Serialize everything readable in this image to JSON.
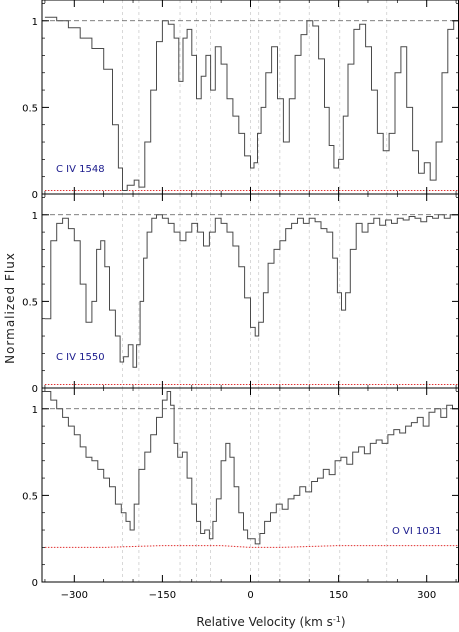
{
  "figure": {
    "ylabel": "Normalized Flux",
    "xlabel": "Relative Velocity (km s",
    "xlabel_sup": "-1",
    "xlabel_close": ")"
  },
  "colors": {
    "spectrum": "#4a4a4a",
    "error": "#e03030",
    "label": "#1a1a8c",
    "continuum": "#555555",
    "guide": "#c8c8c8"
  },
  "chart_data": {
    "type": "line",
    "shared_x": {
      "range": [
        -355,
        355
      ],
      "ticks": [
        -300,
        -150,
        0,
        150,
        300
      ],
      "tick_labels": [
        "−300",
        "−150",
        "0",
        "150",
        "300"
      ]
    },
    "guide_velocities": [
      -218,
      -190,
      -120,
      -92,
      -68,
      0,
      14,
      50,
      100,
      152,
      232
    ],
    "continuum_level": 1.0,
    "panels": [
      {
        "label": "C IV 1548",
        "ylim": [
          0,
          1.12
        ],
        "yticks": [
          0,
          0.5,
          1
        ],
        "ytick_labels": [
          "0",
          "0.5",
          "1"
        ],
        "flux": {
          "x": [
            -350,
            -330,
            -310,
            -290,
            -270,
            -250,
            -235,
            -225,
            -218,
            -210,
            -198,
            -190,
            -180,
            -170,
            -160,
            -150,
            -140,
            -130,
            -122,
            -115,
            -108,
            -100,
            -92,
            -84,
            -76,
            -68,
            -60,
            -50,
            -40,
            -30,
            -20,
            -10,
            0,
            6,
            12,
            18,
            26,
            36,
            46,
            56,
            66,
            76,
            86,
            96,
            106,
            116,
            126,
            134,
            142,
            150,
            158,
            166,
            176,
            186,
            196,
            206,
            216,
            226,
            236,
            246,
            256,
            266,
            276,
            286,
            296,
            306,
            316,
            326,
            336,
            346,
            355
          ],
          "y": [
            1.02,
            1.0,
            0.96,
            0.9,
            0.84,
            0.72,
            0.4,
            0.15,
            0.02,
            0.05,
            0.08,
            0.04,
            0.3,
            0.6,
            0.88,
            1.0,
            0.98,
            0.9,
            0.65,
            0.9,
            0.95,
            0.8,
            0.55,
            0.68,
            0.8,
            0.6,
            0.85,
            0.75,
            0.55,
            0.45,
            0.35,
            0.22,
            0.15,
            0.18,
            0.35,
            0.5,
            0.7,
            0.85,
            0.55,
            0.3,
            0.55,
            0.8,
            0.92,
            1.0,
            0.97,
            0.78,
            0.5,
            0.28,
            0.15,
            0.2,
            0.45,
            0.75,
            0.95,
            0.98,
            0.85,
            0.6,
            0.35,
            0.25,
            0.35,
            0.7,
            0.85,
            0.5,
            0.25,
            0.12,
            0.18,
            0.08,
            0.3,
            0.7,
            0.95,
            1.0,
            1.0
          ]
        },
        "error": {
          "x": [
            -350,
            -200,
            0,
            200,
            355
          ],
          "y": [
            0.02,
            0.02,
            0.02,
            0.02,
            0.02
          ]
        }
      },
      {
        "label": "C IV 1550",
        "ylim": [
          0,
          1.12
        ],
        "yticks": [
          0,
          0.5,
          1
        ],
        "ytick_labels": [
          "0",
          "0.5",
          "1"
        ],
        "flux": {
          "x": [
            -350,
            -340,
            -330,
            -320,
            -310,
            -300,
            -290,
            -280,
            -270,
            -262,
            -255,
            -248,
            -240,
            -230,
            -222,
            -216,
            -208,
            -200,
            -194,
            -188,
            -182,
            -176,
            -168,
            -160,
            -150,
            -140,
            -130,
            -120,
            -110,
            -100,
            -90,
            -80,
            -70,
            -60,
            -50,
            -40,
            -30,
            -20,
            -10,
            0,
            8,
            14,
            22,
            30,
            40,
            50,
            60,
            70,
            80,
            90,
            100,
            110,
            120,
            130,
            140,
            148,
            155,
            162,
            170,
            180,
            190,
            200,
            210,
            220,
            230,
            240,
            250,
            260,
            270,
            280,
            290,
            300,
            310,
            320,
            330,
            340,
            355
          ],
          "y": [
            0.4,
            0.85,
            0.95,
            0.98,
            0.92,
            0.85,
            0.6,
            0.38,
            0.5,
            0.8,
            0.85,
            0.7,
            0.45,
            0.3,
            0.15,
            0.18,
            0.25,
            0.12,
            0.25,
            0.5,
            0.75,
            0.9,
            0.98,
            1.0,
            0.98,
            0.95,
            0.9,
            0.85,
            0.9,
            0.95,
            0.9,
            0.82,
            0.9,
            0.98,
            0.95,
            0.9,
            0.82,
            0.7,
            0.52,
            0.35,
            0.3,
            0.38,
            0.55,
            0.72,
            0.8,
            0.85,
            0.92,
            0.95,
            0.98,
            0.95,
            0.98,
            0.96,
            0.92,
            0.9,
            0.75,
            0.55,
            0.45,
            0.55,
            0.8,
            0.95,
            0.9,
            0.95,
            0.98,
            0.94,
            0.97,
            0.95,
            0.98,
            0.97,
            0.99,
            0.98,
            0.96,
            0.99,
            0.98,
            1.0,
            0.98,
            1.0,
            0.97
          ]
        },
        "error": {
          "x": [
            -350,
            -200,
            0,
            200,
            355
          ],
          "y": [
            0.02,
            0.02,
            0.02,
            0.02,
            0.02
          ]
        }
      },
      {
        "label": "O VI 1031",
        "ylim": [
          0,
          1.12
        ],
        "yticks": [
          0,
          0.5,
          1
        ],
        "ytick_labels": [
          "0",
          "0.5",
          "1"
        ],
        "flux": {
          "x": [
            -350,
            -340,
            -330,
            -320,
            -310,
            -300,
            -290,
            -280,
            -270,
            -260,
            -250,
            -240,
            -230,
            -220,
            -212,
            -205,
            -198,
            -190,
            -180,
            -170,
            -160,
            -150,
            -142,
            -136,
            -130,
            -124,
            -116,
            -108,
            -100,
            -92,
            -85,
            -78,
            -70,
            -64,
            -58,
            -50,
            -42,
            -35,
            -28,
            -20,
            -12,
            -5,
            0,
            8,
            16,
            24,
            34,
            44,
            54,
            64,
            74,
            84,
            94,
            104,
            114,
            124,
            134,
            144,
            154,
            164,
            174,
            184,
            194,
            204,
            214,
            224,
            234,
            244,
            254,
            264,
            274,
            284,
            294,
            304,
            314,
            324,
            334,
            344,
            355
          ],
          "y": [
            1.1,
            1.05,
            1.0,
            0.95,
            0.9,
            0.85,
            0.78,
            0.72,
            0.7,
            0.65,
            0.6,
            0.55,
            0.45,
            0.4,
            0.35,
            0.3,
            0.45,
            0.65,
            0.75,
            0.85,
            0.95,
            1.05,
            1.1,
            1.02,
            0.8,
            0.72,
            0.75,
            0.6,
            0.45,
            0.35,
            0.28,
            0.3,
            0.25,
            0.35,
            0.48,
            0.7,
            0.8,
            0.72,
            0.55,
            0.4,
            0.3,
            0.25,
            0.25,
            0.22,
            0.28,
            0.35,
            0.4,
            0.45,
            0.42,
            0.48,
            0.5,
            0.55,
            0.52,
            0.58,
            0.6,
            0.65,
            0.62,
            0.7,
            0.72,
            0.68,
            0.75,
            0.78,
            0.74,
            0.8,
            0.82,
            0.8,
            0.85,
            0.88,
            0.86,
            0.9,
            0.92,
            0.95,
            0.9,
            0.98,
            1.0,
            0.95,
            1.02,
            1.0,
            1.05
          ]
        },
        "error": {
          "x": [
            -350,
            -250,
            -150,
            -50,
            0,
            50,
            150,
            250,
            355
          ],
          "y": [
            0.2,
            0.2,
            0.21,
            0.21,
            0.2,
            0.2,
            0.21,
            0.21,
            0.21
          ]
        }
      }
    ]
  }
}
